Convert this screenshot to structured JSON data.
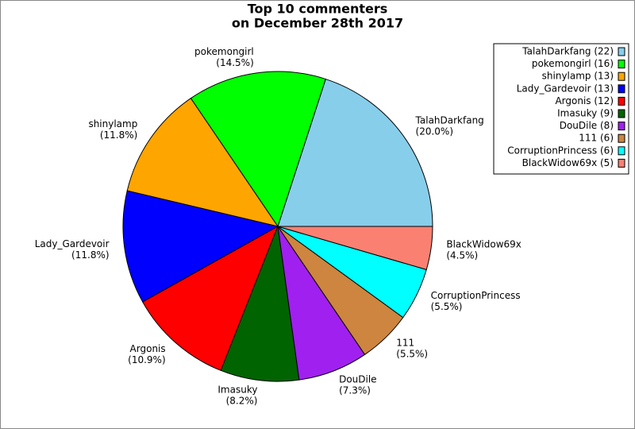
{
  "chart_data": {
    "type": "pie",
    "title": "Top 10 commenters",
    "subtitle": "on December 28th 2017",
    "categories": [
      "TalahDarkfang",
      "pokemongirl",
      "shinylamp",
      "Lady_Gardevoir",
      "Argonis",
      "Imasuky",
      "DouDile",
      "111",
      "CorruptionPrincess",
      "BlackWidow69x"
    ],
    "values": [
      20.0,
      14.5,
      11.8,
      11.8,
      10.9,
      8.2,
      7.3,
      5.5,
      5.5,
      4.5
    ],
    "value_labels": [
      "(20.0%)",
      "(14.5%)",
      "(11.8%)",
      "(11.8%)",
      "(10.9%)",
      "(8.2%)",
      "(7.3%)",
      "(5.5%)",
      "(5.5%)",
      "(4.5%)"
    ],
    "legend_labels": [
      "TalahDarkfang (22)",
      "pokemongirl (16)",
      "shinylamp (13)",
      "Lady_Gardevoir (13)",
      "Argonis (12)",
      "Imasuky (9)",
      "DouDile (8)",
      "111 (6)",
      "CorruptionPrincess (6)",
      "BlackWidow69x (5)"
    ],
    "colors": [
      "#87ceeb",
      "#00ff00",
      "#ffa500",
      "#0000ff",
      "#ff0000",
      "#006400",
      "#a020f0",
      "#cd853f",
      "#00ffff",
      "#fa8072"
    ],
    "legend": "upper right"
  }
}
